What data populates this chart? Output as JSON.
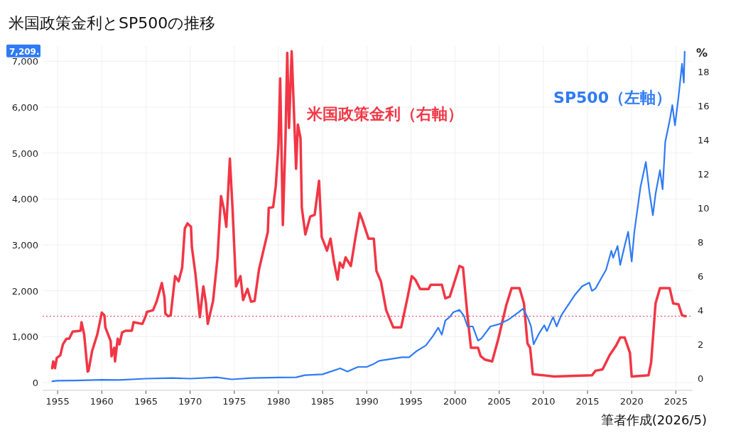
{
  "chart_data": {
    "type": "line",
    "title": "米国政策金利とSP500の推移",
    "annotations": [
      "7,209.",
      "筆者作成(2026/5)"
    ],
    "xlim": [
      1953.3,
      2026.9
    ],
    "xticks": [
      1955,
      1960,
      1965,
      1970,
      1975,
      1980,
      1985,
      1990,
      1995,
      2000,
      2005,
      2010,
      2015,
      2020,
      2025
    ],
    "ylim": [
      -170,
      7330
    ],
    "yticks": [
      0,
      {
        "value": 1000,
        "label": "1,000"
      },
      {
        "value": 2000,
        "label": "2,000"
      },
      {
        "value": 3000,
        "label": "3,000"
      },
      {
        "value": 4000,
        "label": "4,000"
      },
      {
        "value": 5000,
        "label": "5,000"
      },
      {
        "value": 6000,
        "label": "6,000"
      },
      {
        "value": 7000,
        "label": "7,000"
      }
    ],
    "y2lim": [
      -0.7,
      19.5
    ],
    "y2ticks": [
      0,
      2,
      4,
      6,
      8,
      10,
      12,
      14,
      16,
      18
    ],
    "y2label": "%",
    "grid": true,
    "legend": false,
    "line_style": "solid",
    "marker": "none",
    "ref_lines": [
      {
        "axis": "y2",
        "value": 3.65,
        "color": "#f23645",
        "line_style": "dotted"
      }
    ],
    "series": [
      {
        "name": "米国政策金利（右軸）",
        "color": "#f23645",
        "axis": "y2",
        "x": [
          1954.38,
          1954.5,
          1954.7,
          1954.9,
          1955.3,
          1955.6,
          1956.0,
          1956.3,
          1956.7,
          1957.6,
          1957.7,
          1958.0,
          1958.4,
          1958.5,
          1958.9,
          1959.5,
          1960.0,
          1960.3,
          1960.4,
          1961.0,
          1961.1,
          1961.4,
          1961.5,
          1961.8,
          1962.0,
          1962.3,
          1962.7,
          1963.4,
          1963.6,
          1964.6,
          1965.0,
          1965.1,
          1965.8,
          1966.2,
          1966.8,
          1967.1,
          1967.2,
          1967.5,
          1967.8,
          1968.3,
          1968.7,
          1969.1,
          1969.4,
          1969.7,
          1970.1,
          1970.2,
          1970.6,
          1971.1,
          1971.5,
          1971.8,
          1972.0,
          1972.6,
          1973.1,
          1973.5,
          1973.8,
          1974.1,
          1974.5,
          1974.8,
          1975.2,
          1975.7,
          1976.0,
          1976.5,
          1976.9,
          1977.3,
          1977.8,
          1978.8,
          1978.9,
          1979.4,
          1979.7,
          1980.0,
          1980.2,
          1980.5,
          1980.8,
          1981.0,
          1981.2,
          1981.5,
          1982.0,
          1982.2,
          1982.5,
          1982.65,
          1983.05,
          1983.6,
          1984.1,
          1984.6,
          1984.9,
          1985.5,
          1985.9,
          1986.3,
          1986.7,
          1986.95,
          1987.3,
          1987.6,
          1988.2,
          1988.7,
          1989.2,
          1989.5,
          1990.2,
          1990.8,
          1991.1,
          1991.6,
          1992.2,
          1993.0,
          1993.9,
          1994.6,
          1995.1,
          1995.5,
          1996.05,
          1997.0,
          1997.25,
          1998.5,
          1998.9,
          1999.4,
          2000.5,
          2000.9,
          2001.4,
          2001.8,
          2002.6,
          2002.9,
          2003.4,
          2004.2,
          2004.9,
          2005.8,
          2006.4,
          2007.3,
          2007.8,
          2008.2,
          2008.5,
          2008.8,
          2010.1,
          2011.2,
          2015.5,
          2015.9,
          2016.7,
          2017.5,
          2018.2,
          2018.7,
          2019.2,
          2019.8,
          2020.0,
          2021.9,
          2022.2,
          2022.7,
          2023.2,
          2024.3,
          2024.7,
          2025.3,
          2025.7,
          2026.1
        ],
        "values": [
          0.6,
          1.0,
          0.6,
          1.2,
          1.36,
          2.0,
          2.33,
          2.33,
          2.75,
          2.8,
          3.3,
          2.6,
          0.4,
          0.45,
          1.6,
          2.6,
          3.86,
          3.7,
          3.0,
          2.2,
          1.3,
          1.8,
          1.0,
          2.33,
          2.0,
          2.7,
          2.8,
          2.8,
          3.3,
          3.2,
          3.7,
          3.9,
          4.0,
          4.5,
          5.6,
          4.75,
          3.8,
          3.65,
          3.7,
          6.0,
          5.7,
          6.5,
          8.8,
          9.1,
          8.9,
          7.7,
          6.15,
          3.6,
          5.4,
          4.4,
          3.2,
          4.55,
          7.05,
          10.7,
          10.0,
          8.9,
          12.9,
          10.0,
          5.4,
          6.0,
          4.6,
          5.25,
          4.5,
          4.55,
          6.4,
          8.6,
          10.0,
          10.05,
          11.3,
          13.7,
          17.6,
          9.0,
          14.1,
          19.1,
          14.7,
          19.2,
          12.3,
          14.9,
          14.1,
          10.0,
          8.45,
          9.5,
          9.6,
          11.6,
          8.3,
          7.5,
          8.2,
          6.8,
          5.8,
          6.8,
          6.5,
          7.1,
          6.6,
          8.2,
          9.7,
          9.3,
          8.2,
          8.2,
          6.3,
          5.7,
          4.0,
          3.0,
          3.0,
          4.7,
          6.0,
          5.8,
          5.25,
          5.25,
          5.5,
          5.5,
          4.7,
          4.8,
          6.6,
          6.5,
          3.7,
          1.8,
          1.8,
          1.3,
          1.1,
          1.0,
          2.33,
          4.3,
          5.3,
          5.3,
          4.4,
          2.05,
          1.8,
          0.25,
          0.18,
          0.11,
          0.18,
          0.45,
          0.53,
          1.36,
          1.9,
          2.4,
          2.4,
          1.5,
          0.11,
          0.18,
          0.94,
          4.4,
          5.3,
          5.3,
          4.4,
          4.35,
          3.7,
          3.65
        ]
      },
      {
        "name": "SP500（左軸）",
        "color": "#2f7bf5",
        "axis": "y",
        "x": [
          1954.4,
          1955,
          1957,
          1960,
          1962,
          1965,
          1968,
          1970,
          1973,
          1974.7,
          1977,
          1980,
          1982,
          1983,
          1985,
          1987,
          1987.8,
          1989,
          1990,
          1990.7,
          1991.4,
          1994.0,
          1994.8,
          1995.6,
          1996.7,
          1997.5,
          1998.1,
          1998.5,
          1998.9,
          1999.4,
          1999.8,
          2000.5,
          2001.0,
          2001.4,
          2002.0,
          2002.6,
          2003.0,
          2004.0,
          2005.0,
          2006.1,
          2007.2,
          2007.7,
          2008.2,
          2008.6,
          2008.9,
          2009.5,
          2010.1,
          2010.4,
          2011.1,
          2011.5,
          2012.0,
          2012.8,
          2013.6,
          2014.4,
          2015.2,
          2015.5,
          2015.9,
          2016.5,
          2017.1,
          2017.7,
          2017.9,
          2018.4,
          2018.7,
          2019.2,
          2019.6,
          2020.0,
          2020.3,
          2021.0,
          2021.6,
          2022.0,
          2022.4,
          2022.7,
          2023.2,
          2023.5,
          2023.8,
          2024.3,
          2024.6,
          2024.9,
          2025.3,
          2025.7,
          2025.9,
          2026.0
        ],
        "values": [
          30,
          40,
          45,
          60,
          55,
          85,
          100,
          85,
          115,
          70,
          100,
          110,
          115,
          160,
          180,
          310,
          240,
          340,
          340,
          397,
          474,
          552,
          552,
          680,
          810,
          1016,
          1196,
          1042,
          1351,
          1428,
          1532,
          1583,
          1454,
          1222,
          1222,
          913,
          964,
          1222,
          1274,
          1377,
          1532,
          1609,
          1428,
          1222,
          835,
          1067,
          1248,
          1119,
          1428,
          1222,
          1454,
          1686,
          1918,
          2100,
          2176,
          1996,
          2047,
          2254,
          2460,
          2872,
          2718,
          2976,
          2563,
          2976,
          3285,
          2640,
          3285,
          4265,
          4806,
          4161,
          3646,
          4110,
          4626,
          4213,
          5245,
          5709,
          6044,
          5606,
          6224,
          6947,
          6534,
          7209
        ]
      }
    ]
  }
}
